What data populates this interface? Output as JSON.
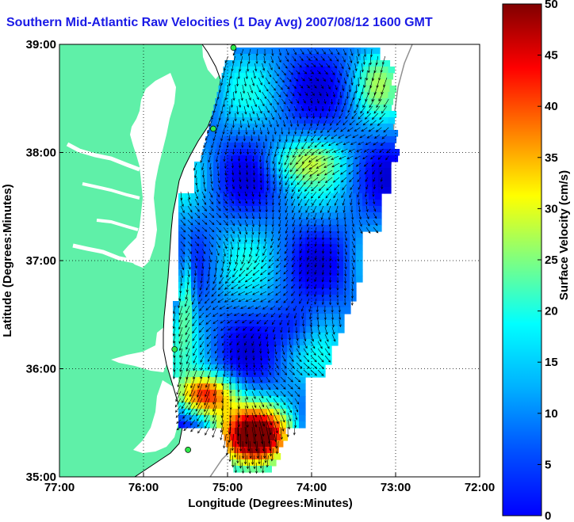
{
  "title": "Southern Mid-Atlantic Raw Velocities (1 Day Avg) 2007/08/12 1600 GMT",
  "map": {
    "xlabel": "Longitude (Degrees:Minutes)",
    "ylabel": "Latitude (Degrees:Minutes)",
    "x_ticks": [
      "77:00",
      "76:00",
      "75:00",
      "74:00",
      "73:00",
      "72:00"
    ],
    "y_ticks": [
      "39:00",
      "38:00",
      "37:00",
      "36:00",
      "35:00"
    ],
    "lon_range": [
      -77,
      -72
    ],
    "lat_range": [
      35,
      39
    ],
    "land_color": "#5ff0a8",
    "water_color": "#ffffff",
    "grid": "dotted"
  },
  "colorbar": {
    "label": "Surface Velocity (cm/s)",
    "ticks": [
      "50",
      "45",
      "40",
      "35",
      "30",
      "25",
      "20",
      "15",
      "10",
      "5",
      "0"
    ],
    "range": [
      0,
      50
    ],
    "colormap": "jet"
  },
  "stations": [
    {
      "lon": -74.93,
      "lat": 38.97
    },
    {
      "lon": -75.17,
      "lat": 38.22
    },
    {
      "lon": -75.63,
      "lat": 36.18
    },
    {
      "lon": -75.47,
      "lat": 35.25
    }
  ]
}
